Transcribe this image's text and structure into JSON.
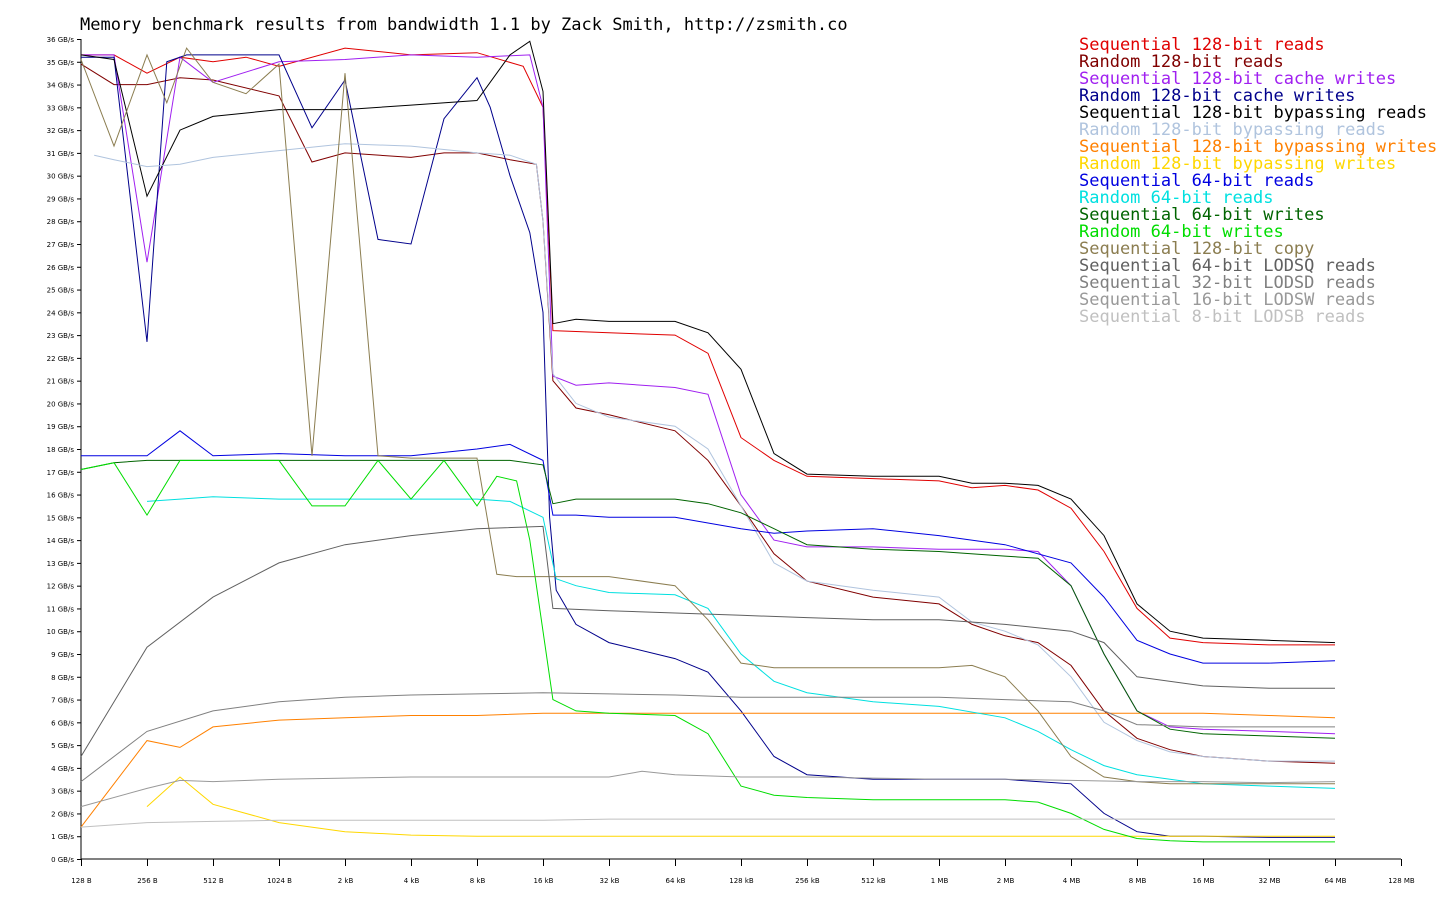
{
  "chart_data": {
    "type": "line",
    "title": "Memory benchmark results from bandwidth 1.1 by Zack Smith, http://zsmith.co",
    "xlabel": "",
    "ylabel": "",
    "x_categories": [
      "128 B",
      "256 B",
      "512 B",
      "1024 B",
      "2 kB",
      "4 kB",
      "8 kB",
      "16 kB",
      "32 kB",
      "64 kB",
      "128 kB",
      "256 kB",
      "512 kB",
      "1 MB",
      "2 MB",
      "4 MB",
      "8 MB",
      "16 MB",
      "32 MB",
      "64 MB",
      "128 MB"
    ],
    "y_ticks": [
      "0 GB/s",
      "1 GB/s",
      "2 GB/s",
      "3 GB/s",
      "4 GB/s",
      "5 GB/s",
      "6 GB/s",
      "7 GB/s",
      "8 GB/s",
      "9 GB/s",
      "10 GB/s",
      "11 GB/s",
      "12 GB/s",
      "13 GB/s",
      "14 GB/s",
      "15 GB/s",
      "16 GB/s",
      "17 GB/s",
      "18 GB/s",
      "19 GB/s",
      "20 GB/s",
      "21 GB/s",
      "22 GB/s",
      "23 GB/s",
      "24 GB/s",
      "25 GB/s",
      "26 GB/s",
      "27 GB/s",
      "28 GB/s",
      "29 GB/s",
      "30 GB/s",
      "31 GB/s",
      "32 GB/s",
      "33 GB/s",
      "34 GB/s",
      "35 GB/s",
      "36 GB/s"
    ],
    "ylim": [
      0,
      36
    ],
    "legend_position": "top-right",
    "series": [
      {
        "name": "Sequential 128-bit reads",
        "color": "#e00000",
        "x": [
          1,
          1.5,
          2,
          2.5,
          3,
          3.5,
          4,
          5,
          6,
          7,
          7.7,
          8,
          8.15,
          9,
          10,
          10.5,
          11,
          11.5,
          12,
          13,
          14,
          14.5,
          15,
          15.5,
          16,
          16.5,
          17,
          17.5,
          18,
          19,
          20
        ],
        "y": [
          35.3,
          35.3,
          34.5,
          35.2,
          35,
          35.2,
          34.8,
          35.6,
          35.3,
          35.4,
          34.8,
          33,
          23.2,
          23.1,
          23,
          22.2,
          18.5,
          17.5,
          16.8,
          16.7,
          16.6,
          16.3,
          16.4,
          16.2,
          15.4,
          13.5,
          11,
          9.7,
          9.5,
          9.4,
          9.4
        ]
      },
      {
        "name": "Random 128-bit reads",
        "color": "#800000",
        "x": [
          1,
          1.5,
          2,
          2.5,
          3,
          4,
          4.5,
          5,
          6,
          6.5,
          7,
          7.5,
          7.9,
          8,
          8.15,
          8.5,
          9,
          10,
          10.5,
          11,
          11.5,
          12,
          13,
          14,
          14.5,
          15,
          15.5,
          16,
          16.5,
          17,
          17.5,
          18,
          18.5,
          19,
          20
        ],
        "y": [
          34.9,
          34,
          34,
          34.3,
          34.2,
          33.5,
          30.6,
          31,
          30.8,
          31,
          31,
          30.7,
          30.5,
          28,
          21,
          19.8,
          19.5,
          18.8,
          17.5,
          15.5,
          13.4,
          12.2,
          11.5,
          11.2,
          10.3,
          9.8,
          9.5,
          8.5,
          6.5,
          5.3,
          4.8,
          4.5,
          4.4,
          4.3,
          4.2
        ]
      },
      {
        "name": "Sequential 128-bit cache writes",
        "color": "#a020f0",
        "x": [
          1,
          1.5,
          2,
          2.5,
          3,
          4,
          5,
          6,
          7,
          7.8,
          8,
          8.15,
          8.5,
          9,
          10,
          10.5,
          11,
          11.5,
          12,
          13,
          14,
          15,
          15.5,
          16,
          16.5,
          17,
          17.5,
          18,
          19,
          20
        ],
        "y": [
          35.3,
          35.3,
          26.2,
          35.2,
          34.1,
          35,
          35.1,
          35.3,
          35.2,
          35.3,
          33,
          21.2,
          20.8,
          20.9,
          20.7,
          20.4,
          16,
          14,
          13.7,
          13.7,
          13.6,
          13.6,
          13.5,
          12,
          9,
          6.5,
          5.8,
          5.7,
          5.6,
          5.5
        ]
      },
      {
        "name": "Random 128-bit cache writes",
        "color": "#00008b",
        "x": [
          1,
          1.5,
          2,
          2.3,
          2.6,
          3,
          4,
          4.5,
          5,
          5.5,
          6,
          6.5,
          7,
          7.2,
          7.5,
          7.8,
          8,
          8.1,
          8.2,
          8.5,
          9,
          10,
          10.5,
          11,
          11.5,
          12,
          13,
          14,
          15,
          15.5,
          16,
          16.5,
          17,
          17.5,
          18,
          19,
          20
        ],
        "y": [
          35.2,
          35.2,
          22.7,
          35,
          35.3,
          35.3,
          35.3,
          32.1,
          34.2,
          27.2,
          27,
          32.5,
          34.3,
          33,
          30,
          27.5,
          24,
          15,
          11.8,
          10.3,
          9.5,
          8.8,
          8.2,
          6.5,
          4.5,
          3.7,
          3.5,
          3.5,
          3.5,
          3.4,
          3.3,
          2,
          1.2,
          1,
          1,
          0.95,
          0.95
        ]
      },
      {
        "name": "Sequential 128-bit bypassing reads",
        "color": "#000000",
        "x": [
          1,
          1.5,
          2,
          2.5,
          3,
          4,
          5,
          6,
          7,
          7.5,
          7.8,
          8,
          8.15,
          8.5,
          9,
          10,
          10.5,
          11,
          11.5,
          12,
          13,
          14,
          14.5,
          15,
          15.5,
          16,
          16.5,
          17,
          17.5,
          18,
          19,
          20
        ],
        "y": [
          35.3,
          35.1,
          29.1,
          32,
          32.6,
          32.9,
          32.9,
          33.1,
          33.3,
          35.3,
          35.9,
          33.7,
          23.5,
          23.7,
          23.6,
          23.6,
          23.1,
          21.5,
          17.8,
          16.9,
          16.8,
          16.8,
          16.5,
          16.5,
          16.4,
          15.8,
          14.2,
          11.2,
          10,
          9.7,
          9.6,
          9.5
        ]
      },
      {
        "name": "Random 128-bit bypassing reads",
        "color": "#b0c4de",
        "x": [
          1.2,
          1.5,
          2,
          2.5,
          3,
          4,
          5,
          6,
          7,
          7.5,
          7.9,
          8,
          8.15,
          8.5,
          9,
          10,
          10.5,
          11,
          11.5,
          12,
          13,
          14,
          14.5,
          15,
          15.5,
          16,
          16.5,
          17,
          17.5,
          18,
          19,
          20
        ],
        "y": [
          30.9,
          30.7,
          30.4,
          30.5,
          30.8,
          31.1,
          31.4,
          31.3,
          31,
          30.9,
          30.5,
          28,
          21.3,
          20,
          19.4,
          19,
          18,
          15.5,
          13,
          12.2,
          11.8,
          11.5,
          10.4,
          10,
          9.4,
          8,
          6,
          5.2,
          4.7,
          4.5,
          4.3,
          4.3
        ]
      },
      {
        "name": "Sequential 128-bit bypassing writes",
        "color": "#ff8000",
        "x": [
          1,
          1.5,
          2,
          2.5,
          3,
          4,
          5,
          6,
          7,
          8,
          9,
          10,
          11,
          12,
          13,
          14,
          15,
          16,
          17,
          18,
          19,
          20
        ],
        "y": [
          1.4,
          3.3,
          5.2,
          4.9,
          5.8,
          6.1,
          6.2,
          6.3,
          6.3,
          6.4,
          6.4,
          6.4,
          6.4,
          6.4,
          6.4,
          6.4,
          6.4,
          6.4,
          6.4,
          6.4,
          6.3,
          6.2
        ]
      },
      {
        "name": "Random 128-bit bypassing writes",
        "color": "#ffd700",
        "x": [
          2,
          2.5,
          3,
          4,
          5,
          6,
          7,
          8,
          9,
          10,
          11,
          12,
          13,
          14,
          15,
          16,
          17,
          18,
          19,
          20
        ],
        "y": [
          2.3,
          3.6,
          2.4,
          1.6,
          1.2,
          1.05,
          1.0,
          1.0,
          1.0,
          1.0,
          1.0,
          1.0,
          1.0,
          1.0,
          1.0,
          1.0,
          1.0,
          1.0,
          1.0,
          1.0
        ]
      },
      {
        "name": "Sequential 64-bit reads",
        "color": "#0000e0",
        "x": [
          1,
          1.5,
          2,
          2.5,
          3,
          4,
          5,
          6,
          7,
          7.5,
          8,
          8.15,
          8.5,
          9,
          10,
          11,
          11.5,
          12,
          13,
          14,
          15,
          16,
          16.5,
          17,
          17.5,
          18,
          19,
          20
        ],
        "y": [
          17.7,
          17.7,
          17.7,
          18.8,
          17.7,
          17.8,
          17.7,
          17.7,
          18,
          18.2,
          17.5,
          15.1,
          15.1,
          15,
          15,
          14.5,
          14.3,
          14.4,
          14.5,
          14.2,
          13.8,
          13,
          11.5,
          9.6,
          9,
          8.6,
          8.6,
          8.7
        ]
      },
      {
        "name": "Random 64-bit reads",
        "color": "#00e0e0",
        "x": [
          2,
          2.5,
          3,
          4,
          5,
          6,
          7,
          7.5,
          8,
          8.2,
          8.5,
          9,
          10,
          10.5,
          11,
          11.5,
          12,
          13,
          14,
          15,
          15.5,
          16,
          16.5,
          17,
          17.5,
          18,
          19,
          20
        ],
        "y": [
          15.7,
          15.8,
          15.9,
          15.8,
          15.8,
          15.8,
          15.8,
          15.7,
          15,
          12.3,
          12,
          11.7,
          11.6,
          11,
          9,
          7.8,
          7.3,
          6.9,
          6.7,
          6.2,
          5.6,
          4.8,
          4.1,
          3.7,
          3.5,
          3.3,
          3.2,
          3.1
        ]
      },
      {
        "name": "Sequential 64-bit writes",
        "color": "#006400",
        "x": [
          1,
          1.5,
          2,
          2.5,
          3,
          4,
          5,
          6,
          7,
          7.5,
          8,
          8.15,
          8.5,
          9,
          10,
          10.5,
          11,
          11.5,
          12,
          13,
          14,
          15,
          15.5,
          16,
          16.5,
          17,
          17.5,
          18,
          19,
          20
        ],
        "y": [
          17.1,
          17.4,
          17.5,
          17.5,
          17.5,
          17.5,
          17.5,
          17.5,
          17.5,
          17.5,
          17.3,
          15.6,
          15.8,
          15.8,
          15.8,
          15.6,
          15.2,
          14.5,
          13.8,
          13.6,
          13.5,
          13.3,
          13.2,
          12,
          9,
          6.5,
          5.7,
          5.5,
          5.4,
          5.3
        ]
      },
      {
        "name": "Random 64-bit writes",
        "color": "#00dd00",
        "x": [
          1,
          1.5,
          2,
          2.5,
          3,
          4,
          4.5,
          5,
          5.5,
          6,
          6.5,
          6.8,
          7,
          7.3,
          7.6,
          7.8,
          8,
          8.15,
          8.5,
          9,
          10,
          10.5,
          11,
          11.5,
          12,
          13,
          14,
          15,
          15.5,
          16,
          16.5,
          17,
          17.5,
          18,
          19,
          20
        ],
        "y": [
          17.1,
          17.4,
          15.1,
          17.5,
          17.5,
          17.5,
          15.5,
          15.5,
          17.5,
          15.8,
          17.5,
          16.3,
          15.5,
          16.8,
          16.6,
          14,
          10,
          7,
          6.5,
          6.4,
          6.3,
          5.5,
          3.2,
          2.8,
          2.7,
          2.6,
          2.6,
          2.6,
          2.5,
          2,
          1.3,
          0.9,
          0.8,
          0.75,
          0.75,
          0.75
        ]
      },
      {
        "name": "Sequential 128-bit copy",
        "color": "#8b7d50",
        "x": [
          1,
          1.5,
          2,
          2.3,
          2.6,
          3,
          3.5,
          4,
          4.5,
          5,
          5.5,
          6,
          6.5,
          7,
          7.3,
          7.6,
          8,
          8.15,
          8.5,
          9,
          10,
          10.5,
          11,
          11.5,
          12,
          13,
          14,
          14.5,
          15,
          15.5,
          16,
          16.5,
          17,
          17.5,
          18,
          19,
          20
        ],
        "y": [
          35.1,
          31.3,
          35.3,
          33.2,
          35.6,
          34.1,
          33.6,
          34.9,
          17.7,
          34.5,
          17.7,
          17.6,
          17.6,
          17.6,
          12.5,
          12.4,
          12.4,
          12.4,
          12.4,
          12.4,
          12,
          10.5,
          8.6,
          8.4,
          8.4,
          8.4,
          8.4,
          8.5,
          8,
          6.5,
          4.5,
          3.6,
          3.4,
          3.3,
          3.3,
          3.3,
          3.3
        ]
      },
      {
        "name": "Sequential 64-bit LODSQ reads",
        "color": "#606060",
        "x": [
          1,
          2,
          3,
          4,
          5,
          6,
          7,
          8,
          8.15,
          9,
          10,
          11,
          12,
          13,
          14,
          15,
          16,
          16.5,
          17,
          18,
          19,
          20
        ],
        "y": [
          4.5,
          9.3,
          11.5,
          13,
          13.8,
          14.2,
          14.5,
          14.6,
          11,
          10.9,
          10.8,
          10.7,
          10.6,
          10.5,
          10.5,
          10.3,
          10,
          9.5,
          8,
          7.6,
          7.5,
          7.5
        ]
      },
      {
        "name": "Sequential 32-bit LODSD reads",
        "color": "#808080",
        "x": [
          1,
          2,
          3,
          4,
          5,
          6,
          7,
          8,
          9,
          10,
          11,
          12,
          13,
          14,
          15,
          16,
          16.5,
          17,
          18,
          19,
          20
        ],
        "y": [
          3.4,
          5.6,
          6.5,
          6.9,
          7.1,
          7.2,
          7.25,
          7.3,
          7.25,
          7.2,
          7.1,
          7.1,
          7.1,
          7.1,
          7.0,
          6.9,
          6.5,
          5.9,
          5.8,
          5.8,
          5.8
        ]
      },
      {
        "name": "Sequential 16-bit LODSW reads",
        "color": "#999999",
        "x": [
          1,
          2,
          2.5,
          3,
          4,
          5,
          6,
          7,
          8,
          9,
          9.5,
          10,
          11,
          12,
          13,
          14,
          15,
          16,
          17,
          18,
          19,
          20
        ],
        "y": [
          2.3,
          3.1,
          3.45,
          3.4,
          3.5,
          3.55,
          3.6,
          3.6,
          3.6,
          3.6,
          3.85,
          3.7,
          3.6,
          3.6,
          3.55,
          3.5,
          3.5,
          3.45,
          3.4,
          3.4,
          3.35,
          3.4
        ]
      },
      {
        "name": "Sequential 8-bit LODSB reads",
        "color": "#c0c0c0",
        "x": [
          1,
          2,
          3,
          4,
          5,
          6,
          7,
          8,
          9,
          10,
          11,
          12,
          13,
          14,
          15,
          16,
          17,
          18,
          19,
          20
        ],
        "y": [
          1.4,
          1.6,
          1.65,
          1.7,
          1.7,
          1.7,
          1.7,
          1.7,
          1.75,
          1.75,
          1.75,
          1.75,
          1.75,
          1.75,
          1.75,
          1.75,
          1.75,
          1.75,
          1.75,
          1.75
        ]
      }
    ]
  }
}
